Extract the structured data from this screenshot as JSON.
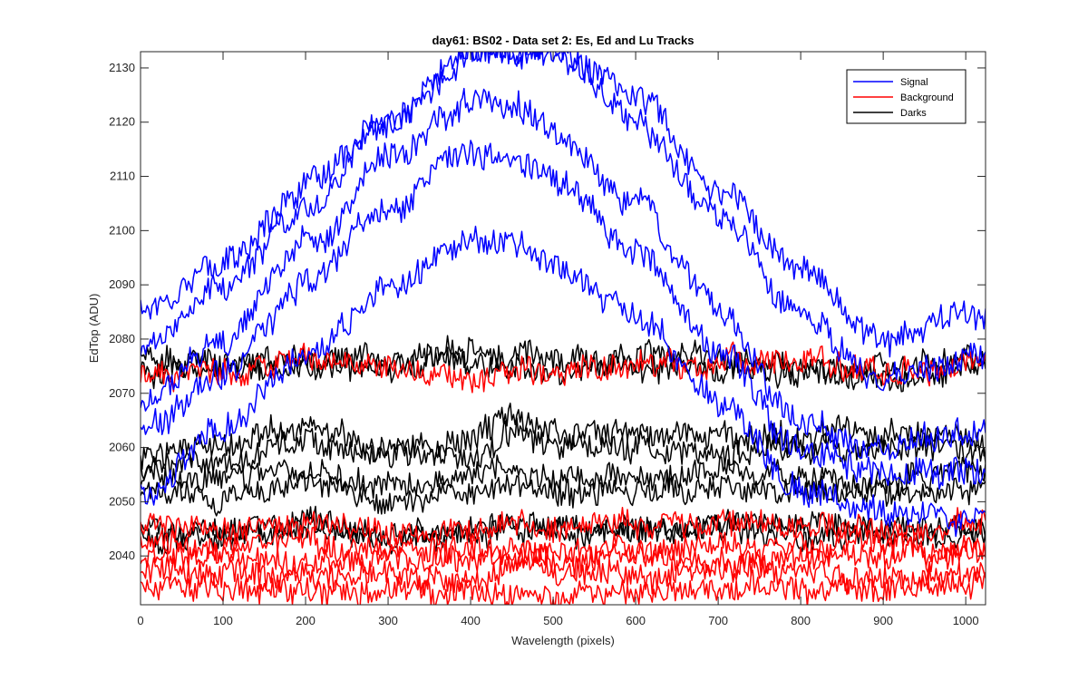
{
  "chart_data": {
    "type": "line",
    "title": "day61: BS02 - Data set 2: Es, Ed and Lu Tracks",
    "xlabel": "Wavelength (pixels)",
    "ylabel": "EdTop (ADU)",
    "xlim": [
      0,
      1024
    ],
    "ylim": [
      2031,
      2133
    ],
    "xticks": [
      0,
      100,
      200,
      300,
      400,
      500,
      600,
      700,
      800,
      900,
      1000
    ],
    "yticks": [
      2040,
      2050,
      2060,
      2070,
      2080,
      2090,
      2100,
      2110,
      2120,
      2130
    ],
    "xtick_labels": [
      "0",
      "100",
      "200",
      "300",
      "400",
      "500",
      "600",
      "700",
      "800",
      "900",
      "1000"
    ],
    "ytick_labels": [
      "2040",
      "2050",
      "2060",
      "2070",
      "2080",
      "2090",
      "2100",
      "2110",
      "2120",
      "2130"
    ],
    "grid": false,
    "legend_position": "top-right",
    "legend": [
      {
        "label": "Signal",
        "color": "#0000ff"
      },
      {
        "label": "Background",
        "color": "#ff0000"
      },
      {
        "label": "Darks",
        "color": "#000000"
      }
    ],
    "x_sample": [
      0,
      100,
      200,
      300,
      400,
      450,
      500,
      600,
      700,
      800,
      900,
      1024
    ],
    "series": [
      {
        "group": "Signal",
        "color": "#0000ff",
        "y": [
          2086,
          2094,
          2108,
          2120,
          2133,
          2133,
          2133,
          2125,
          2108,
          2093,
          2080,
          2085
        ]
      },
      {
        "group": "Signal",
        "color": "#0000ff",
        "y": [
          2079,
          2090,
          2104,
          2119,
          2133,
          2133,
          2133,
          2120,
          2103,
          2085,
          2072,
          2077
        ]
      },
      {
        "group": "Signal",
        "color": "#0000ff",
        "y": [
          2068,
          2080,
          2097,
          2113,
          2123,
          2123,
          2118,
          2105,
          2085,
          2065,
          2060,
          2063
        ]
      },
      {
        "group": "Signal",
        "color": "#0000ff",
        "y": [
          2063,
          2073,
          2090,
          2105,
          2115,
          2114,
          2110,
          2097,
          2078,
          2060,
          2055,
          2056
        ]
      },
      {
        "group": "Signal",
        "color": "#0000ff",
        "y": [
          2051,
          2064,
          2078,
          2089,
          2099,
          2098,
          2094,
          2084,
          2068,
          2052,
          2048,
          2046
        ]
      },
      {
        "group": "Background",
        "color": "#ff0000",
        "y": [
          2073,
          2074,
          2076,
          2075,
          2073,
          2075,
          2074,
          2075,
          2076,
          2076,
          2074,
          2076
        ]
      },
      {
        "group": "Background",
        "color": "#ff0000",
        "y": [
          2046,
          2045,
          2046,
          2044,
          2044,
          2046,
          2045,
          2046,
          2046,
          2045,
          2045,
          2046
        ]
      },
      {
        "group": "Background",
        "color": "#ff0000",
        "y": [
          2042,
          2041,
          2042,
          2042,
          2040,
          2041,
          2041,
          2041,
          2042,
          2042,
          2042,
          2041
        ]
      },
      {
        "group": "Background",
        "color": "#ff0000",
        "y": [
          2040,
          2040,
          2039,
          2039,
          2041,
          2040,
          2039,
          2040,
          2039,
          2040,
          2040,
          2040
        ]
      },
      {
        "group": "Background",
        "color": "#ff0000",
        "y": [
          2037,
          2037,
          2036,
          2037,
          2036,
          2037,
          2037,
          2036,
          2038,
          2037,
          2036,
          2037
        ]
      },
      {
        "group": "Background",
        "color": "#ff0000",
        "y": [
          2034,
          2034,
          2034,
          2033,
          2034,
          2033,
          2033,
          2033,
          2034,
          2034,
          2034,
          2035
        ]
      },
      {
        "group": "Darks",
        "color": "#000000",
        "y": [
          2076,
          2075,
          2077,
          2076,
          2078,
          2077,
          2076,
          2077,
          2076,
          2075,
          2075,
          2076
        ]
      },
      {
        "group": "Darks",
        "color": "#000000",
        "y": [
          2074,
          2074,
          2075,
          2075,
          2076,
          2075,
          2074,
          2075,
          2075,
          2074,
          2073,
          2075
        ]
      },
      {
        "group": "Darks",
        "color": "#000000",
        "y": [
          2059,
          2060,
          2064,
          2060,
          2061,
          2066,
          2063,
          2063,
          2062,
          2062,
          2063,
          2062
        ]
      },
      {
        "group": "Darks",
        "color": "#000000",
        "y": [
          2057,
          2058,
          2061,
          2058,
          2058,
          2063,
          2060,
          2060,
          2059,
          2059,
          2060,
          2059
        ]
      },
      {
        "group": "Darks",
        "color": "#000000",
        "y": [
          2055,
          2054,
          2056,
          2053,
          2055,
          2056,
          2054,
          2055,
          2056,
          2055,
          2054,
          2056
        ]
      },
      {
        "group": "Darks",
        "color": "#000000",
        "y": [
          2052,
          2051,
          2053,
          2050,
          2052,
          2053,
          2051,
          2052,
          2053,
          2052,
          2051,
          2053
        ]
      },
      {
        "group": "Darks",
        "color": "#000000",
        "y": [
          2045,
          2045,
          2046,
          2044,
          2045,
          2046,
          2046,
          2045,
          2046,
          2046,
          2045,
          2045
        ]
      },
      {
        "group": "Darks",
        "color": "#000000",
        "y": [
          2044,
          2043,
          2045,
          2043,
          2044,
          2044,
          2044,
          2044,
          2045,
          2044,
          2044,
          2044
        ]
      }
    ]
  }
}
